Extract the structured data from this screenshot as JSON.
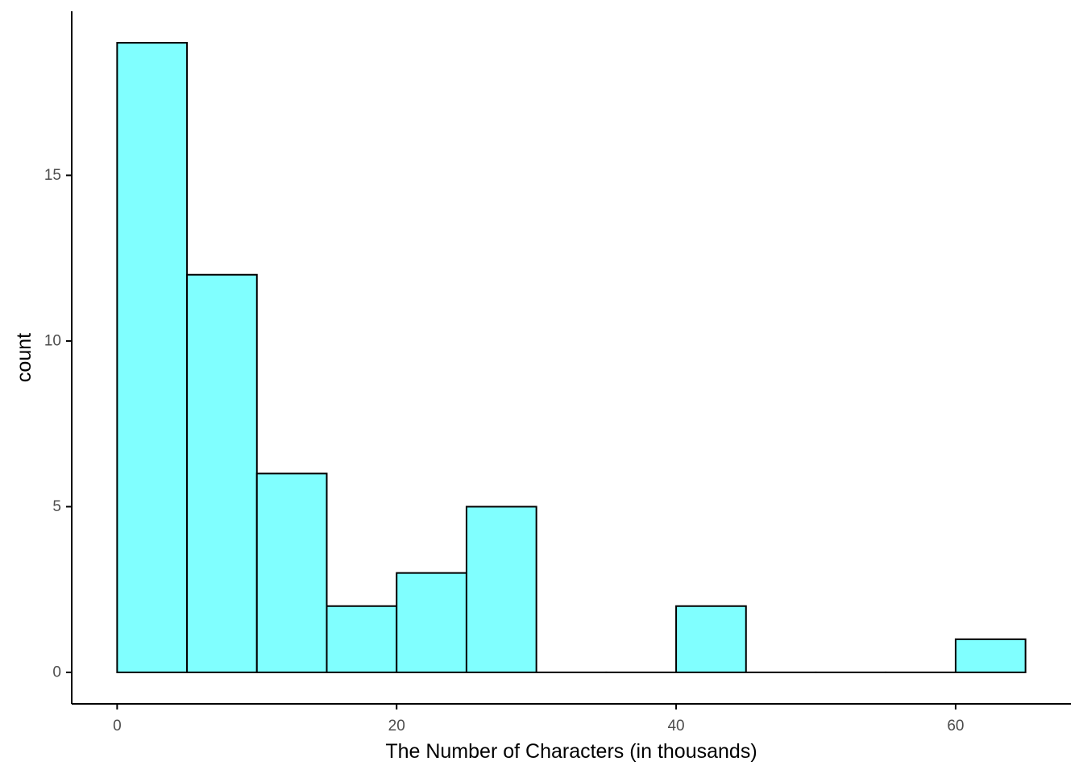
{
  "chart_data": {
    "type": "histogram",
    "title": "",
    "xlabel": "The Number of Characters (in thousands)",
    "ylabel": "count",
    "bin_width": 5,
    "bins": [
      {
        "x0": 0,
        "x1": 5,
        "count": 19
      },
      {
        "x0": 5,
        "x1": 10,
        "count": 12
      },
      {
        "x0": 10,
        "x1": 15,
        "count": 6
      },
      {
        "x0": 15,
        "x1": 20,
        "count": 2
      },
      {
        "x0": 20,
        "x1": 25,
        "count": 3
      },
      {
        "x0": 25,
        "x1": 30,
        "count": 5
      },
      {
        "x0": 30,
        "x1": 35,
        "count": 0
      },
      {
        "x0": 35,
        "x1": 40,
        "count": 0
      },
      {
        "x0": 40,
        "x1": 45,
        "count": 2
      },
      {
        "x0": 45,
        "x1": 50,
        "count": 0
      },
      {
        "x0": 50,
        "x1": 55,
        "count": 0
      },
      {
        "x0": 55,
        "x1": 60,
        "count": 0
      },
      {
        "x0": 60,
        "x1": 65,
        "count": 1
      }
    ],
    "xlim": [
      -3.25,
      68.25
    ],
    "ylim": [
      -0.95,
      19.95
    ],
    "x_ticks": [
      0,
      20,
      40,
      60
    ],
    "y_ticks": [
      0,
      5,
      10,
      15
    ],
    "x_tick_labels": [
      "0",
      "20",
      "40",
      "60"
    ],
    "y_tick_labels": [
      "0",
      "5",
      "10",
      "15"
    ],
    "grid": false,
    "legend": "none",
    "colors": {
      "bar_fill": "#80FFFF",
      "bar_stroke": "#000000",
      "axis": "#000000",
      "tick_label": "#4d4d4d"
    }
  }
}
